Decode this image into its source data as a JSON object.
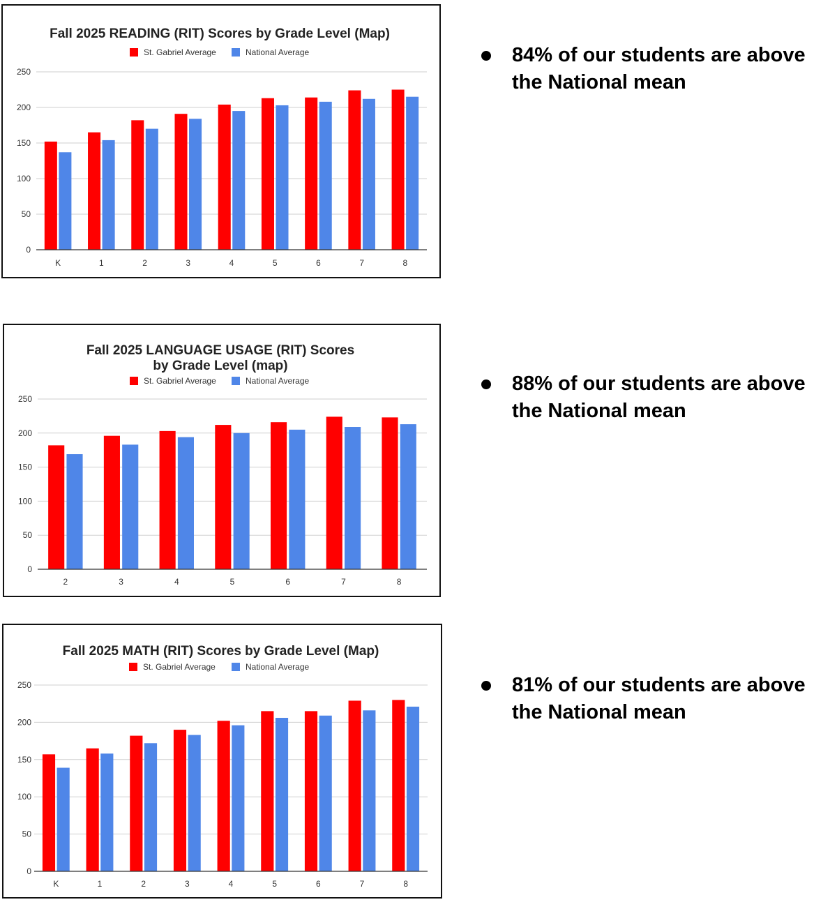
{
  "chart_data": [
    {
      "type": "bar",
      "title": "Fall 2025 READING (RIT) Scores by Grade Level (Map)",
      "categories": [
        "K",
        "1",
        "2",
        "3",
        "4",
        "5",
        "6",
        "7",
        "8"
      ],
      "series": [
        {
          "name": "St. Gabriel Average",
          "color": "#ff0000",
          "values": [
            152,
            165,
            182,
            191,
            204,
            213,
            214,
            224,
            225
          ]
        },
        {
          "name": "National Average",
          "color": "#4f86e8",
          "values": [
            137,
            154,
            170,
            184,
            195,
            203,
            208,
            212,
            215
          ]
        }
      ],
      "yticks": [
        "0",
        "50",
        "100",
        "150",
        "200",
        "250"
      ],
      "ylim": [
        0,
        250
      ],
      "grid": true,
      "legend": "top-center"
    },
    {
      "type": "bar",
      "title": "Fall 2025 LANGUAGE USAGE (RIT) Scores by Grade Level (map)",
      "title_lines": [
        "Fall 2025 LANGUAGE USAGE (RIT) Scores",
        "by Grade Level (map)"
      ],
      "categories": [
        "2",
        "3",
        "4",
        "5",
        "6",
        "7",
        "8"
      ],
      "series": [
        {
          "name": "St. Gabriel Average",
          "color": "#ff0000",
          "values": [
            182,
            196,
            203,
            212,
            216,
            224,
            223
          ]
        },
        {
          "name": "National Average",
          "color": "#4f86e8",
          "values": [
            169,
            183,
            194,
            200,
            205,
            209,
            213
          ]
        }
      ],
      "yticks": [
        "0",
        "50",
        "100",
        "150",
        "200",
        "250"
      ],
      "ylim": [
        0,
        250
      ],
      "grid": true,
      "legend": "top-center"
    },
    {
      "type": "bar",
      "title": "Fall 2025 MATH (RIT) Scores by Grade Level (Map)",
      "categories": [
        "K",
        "1",
        "2",
        "3",
        "4",
        "5",
        "6",
        "7",
        "8"
      ],
      "series": [
        {
          "name": "St. Gabriel Average",
          "color": "#ff0000",
          "values": [
            157,
            165,
            182,
            190,
            202,
            215,
            215,
            229,
            230
          ]
        },
        {
          "name": "National Average",
          "color": "#4f86e8",
          "values": [
            139,
            158,
            172,
            183,
            196,
            206,
            209,
            216,
            221
          ]
        }
      ],
      "yticks": [
        "0",
        "50",
        "100",
        "150",
        "200",
        "250"
      ],
      "ylim": [
        0,
        250
      ],
      "grid": true,
      "legend": "top-center"
    }
  ],
  "bullets": [
    {
      "line1": "84% of our students are above",
      "line2": "the National mean"
    },
    {
      "line1": "88% of our students are above",
      "line2": "the National mean"
    },
    {
      "line1": "81% of our students are above",
      "line2": "the National mean"
    }
  ]
}
